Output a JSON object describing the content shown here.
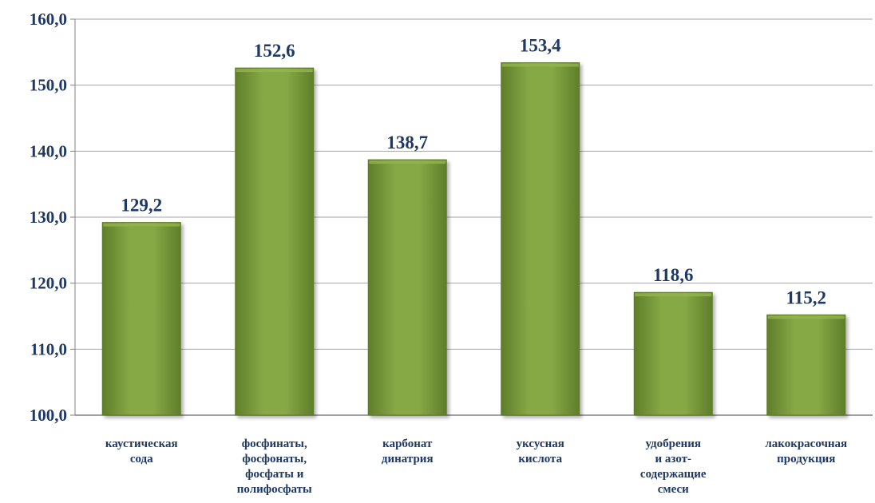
{
  "chart_data": {
    "type": "bar",
    "title": "",
    "xlabel": "",
    "ylabel": "",
    "ylim": [
      100,
      160
    ],
    "ytick_step": 10,
    "ytick_labels": [
      "100,0",
      "110,0",
      "120,0",
      "130,0",
      "140,0",
      "150,0",
      "160,0"
    ],
    "grid": true,
    "legend": "none",
    "categories": [
      [
        "каустическая",
        "сода"
      ],
      [
        "фосфинаты,",
        "фосфонаты,",
        "фосфаты и",
        "полифосфаты"
      ],
      [
        "карбонат",
        "динатрия"
      ],
      [
        "уксусная",
        "кислота"
      ],
      [
        "удобрения",
        "и азот-",
        "содержащие",
        "смеси"
      ],
      [
        "лакокрасочная",
        "продукция"
      ]
    ],
    "values": [
      129.2,
      152.6,
      138.7,
      153.4,
      118.6,
      115.2
    ],
    "value_labels": [
      "129,2",
      "152,6",
      "138,7",
      "153,4",
      "118,6",
      "115,2"
    ],
    "colors": {
      "bar": "#7a9a3c",
      "bar_light": "#93b44e",
      "bar_dark": "#5c7a28",
      "text": "#1f3864",
      "grid": "#a6a6a6",
      "axis": "#808080"
    }
  }
}
